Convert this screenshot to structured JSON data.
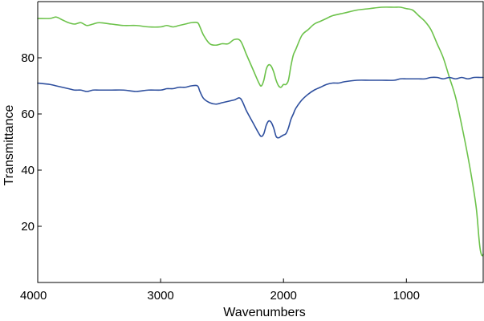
{
  "chart_data": {
    "type": "line",
    "title": "",
    "xlabel": "Wavenumbers",
    "ylabel": "Transmittance",
    "xlim": [
      4000,
      375
    ],
    "ylim": [
      0,
      100
    ],
    "x_reversed": true,
    "x_ticks": [
      4000,
      3000,
      2000,
      1000
    ],
    "y_ticks": [
      20,
      40,
      60,
      80
    ],
    "grid": false,
    "legend": "none",
    "series": [
      {
        "color": "#6cc24a",
        "x": [
          4000,
          3900,
          3850,
          3800,
          3750,
          3700,
          3650,
          3600,
          3550,
          3500,
          3400,
          3300,
          3200,
          3100,
          3000,
          2950,
          2900,
          2850,
          2800,
          2750,
          2700,
          2680,
          2650,
          2600,
          2550,
          2500,
          2450,
          2400,
          2350,
          2300,
          2250,
          2200,
          2180,
          2160,
          2140,
          2120,
          2100,
          2080,
          2060,
          2040,
          2020,
          2000,
          1980,
          1960,
          1940,
          1920,
          1900,
          1850,
          1800,
          1750,
          1700,
          1650,
          1600,
          1500,
          1400,
          1300,
          1200,
          1100,
          1050,
          1000,
          950,
          900,
          850,
          800,
          750,
          700,
          650,
          600,
          550,
          500,
          460,
          430,
          410,
          400,
          390,
          380,
          375
        ],
        "y": [
          94,
          94,
          94.5,
          93.5,
          92.5,
          92,
          92.5,
          91.5,
          92,
          92.5,
          92,
          91.5,
          91.5,
          91,
          91,
          91.5,
          91,
          91.5,
          92,
          92.5,
          92.5,
          91,
          88,
          85,
          84.5,
          85,
          85,
          86.5,
          86,
          81,
          76,
          71,
          70,
          72,
          76,
          77.5,
          77,
          75,
          72,
          70,
          69.5,
          70.5,
          70.5,
          72,
          77,
          81,
          83,
          88,
          90,
          92,
          93,
          94,
          95,
          96,
          97,
          97.5,
          98,
          98,
          98,
          97.5,
          97,
          95,
          93,
          90,
          85,
          80,
          73,
          66,
          56,
          45,
          35,
          26,
          16,
          12,
          10,
          9.5,
          10
        ]
      },
      {
        "color": "#2e4f9e",
        "x": [
          4000,
          3900,
          3850,
          3800,
          3750,
          3700,
          3650,
          3600,
          3550,
          3500,
          3400,
          3300,
          3200,
          3100,
          3000,
          2950,
          2900,
          2850,
          2800,
          2750,
          2700,
          2680,
          2650,
          2600,
          2550,
          2500,
          2450,
          2400,
          2350,
          2300,
          2250,
          2200,
          2180,
          2160,
          2140,
          2120,
          2100,
          2080,
          2060,
          2040,
          2020,
          2000,
          1980,
          1960,
          1940,
          1920,
          1900,
          1850,
          1800,
          1750,
          1700,
          1650,
          1600,
          1550,
          1500,
          1400,
          1300,
          1200,
          1100,
          1050,
          1000,
          950,
          900,
          850,
          800,
          750,
          700,
          650,
          600,
          550,
          500,
          450,
          400,
          375
        ],
        "y": [
          71,
          70.5,
          70,
          69.5,
          69,
          68.5,
          68.5,
          68,
          68.5,
          68.5,
          68.5,
          68.5,
          68,
          68.5,
          68.5,
          69,
          69,
          69.5,
          69.5,
          70,
          70,
          68,
          65.5,
          64,
          63.5,
          64,
          64.5,
          65,
          65.5,
          61,
          57,
          53,
          52,
          53,
          56,
          57.5,
          57,
          55,
          52,
          51.5,
          52,
          52.5,
          53,
          55,
          58,
          60,
          62,
          65,
          67,
          68.5,
          69.5,
          70.5,
          71,
          71,
          71.5,
          72,
          72,
          72,
          72,
          72.5,
          72.5,
          72.5,
          72.5,
          72.5,
          73,
          73,
          72.5,
          73,
          72.5,
          73,
          72.5,
          73,
          73,
          73
        ]
      }
    ]
  }
}
